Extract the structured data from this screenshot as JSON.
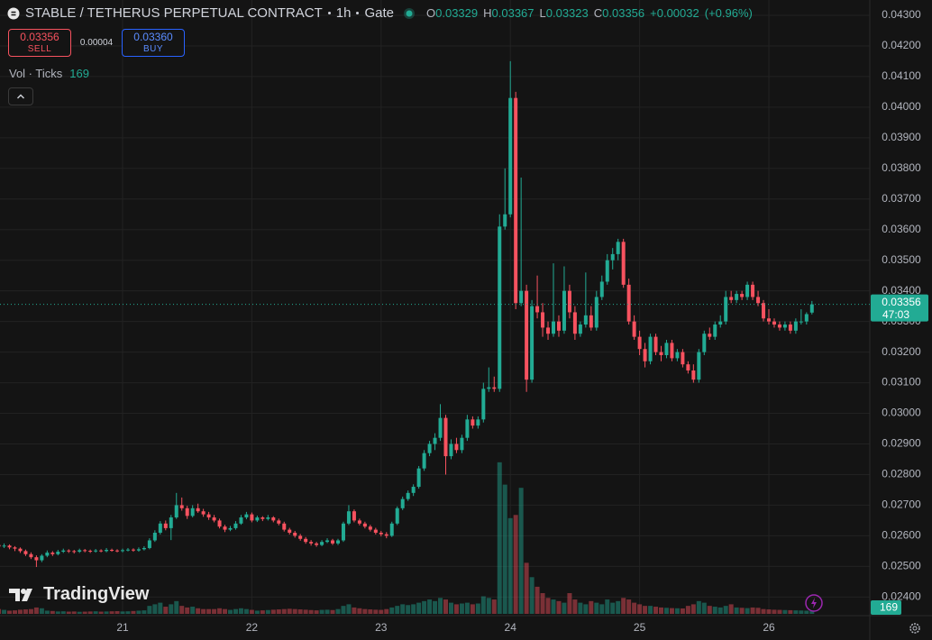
{
  "chart_data": {
    "type": "candlestick",
    "symbol": "STABLE / TETHERUS PERPETUAL CONTRACT",
    "interval": "1h",
    "exchange": "Gate",
    "ohlc_labels": [
      "O",
      "H",
      "L",
      "C"
    ],
    "change": {
      "value": 0.00032,
      "label": "+0.00032"
    },
    "change_percent": {
      "value": 0.96,
      "label": "(+0.96%)"
    },
    "trade": {
      "sell_price": 0.03356,
      "sell_label": "SELL",
      "spread": 4e-05,
      "buy_price": {
        "value": 0.0336,
        "label": "0.03360"
      },
      "buy_label": "BUY"
    },
    "volume_title": "Vol · Ticks",
    "countdown": "47:03",
    "logo": "TradingView",
    "up_color": "#22ab94",
    "down_color": "#f7525f",
    "grid": true,
    "ylim": [
      0.02345,
      0.0435
    ],
    "yticks": [
      {
        "value": 0.024,
        "label": "0.02400"
      },
      {
        "value": 0.025,
        "label": "0.02500"
      },
      {
        "value": 0.026,
        "label": "0.02600"
      },
      {
        "value": 0.027,
        "label": "0.02700"
      },
      {
        "value": 0.028,
        "label": "0.02800"
      },
      {
        "value": 0.029,
        "label": "0.02900"
      },
      {
        "value": 0.03,
        "label": "0.03000"
      },
      {
        "value": 0.031,
        "label": "0.03100"
      },
      {
        "value": 0.032,
        "label": "0.03200"
      },
      {
        "value": 0.033,
        "label": "0.03300"
      },
      {
        "value": 0.034,
        "label": "0.03400"
      },
      {
        "value": 0.035,
        "label": "0.03500"
      },
      {
        "value": 0.036,
        "label": "0.03600"
      },
      {
        "value": 0.037,
        "label": "0.03700"
      },
      {
        "value": 0.038,
        "label": "0.03800"
      },
      {
        "value": 0.039,
        "label": "0.03900"
      },
      {
        "value": 0.04,
        "label": "0.04000"
      },
      {
        "value": 0.041,
        "label": "0.04100"
      },
      {
        "value": 0.042,
        "label": "0.04200"
      },
      {
        "value": 0.043,
        "label": "0.04300"
      }
    ],
    "xticks": [
      {
        "value": 23,
        "label": "21"
      },
      {
        "value": 47,
        "label": "22"
      },
      {
        "value": 71,
        "label": "23"
      },
      {
        "value": 95,
        "label": "24"
      },
      {
        "value": 119,
        "label": "25"
      },
      {
        "value": 143,
        "label": "26"
      }
    ],
    "candles": [
      [
        0.0257,
        0.02578,
        0.0256,
        0.02565
      ],
      [
        0.02565,
        0.02575,
        0.0256,
        0.02568
      ],
      [
        0.02568,
        0.02572,
        0.02556,
        0.02562
      ],
      [
        0.02562,
        0.02566,
        0.0255,
        0.02558
      ],
      [
        0.02558,
        0.02562,
        0.02544,
        0.0255
      ],
      [
        0.0255,
        0.02555,
        0.02534,
        0.0254
      ],
      [
        0.0254,
        0.02546,
        0.02524,
        0.0253
      ],
      [
        0.0253,
        0.02536,
        0.02498,
        0.0252
      ],
      [
        0.0252,
        0.0254,
        0.02514,
        0.02535
      ],
      [
        0.02535,
        0.02552,
        0.0253,
        0.02545
      ],
      [
        0.02545,
        0.0255,
        0.02534,
        0.0254
      ],
      [
        0.0254,
        0.02554,
        0.02536,
        0.02548
      ],
      [
        0.02548,
        0.02558,
        0.02544,
        0.02552
      ],
      [
        0.02552,
        0.02556,
        0.02544,
        0.0255
      ],
      [
        0.0255,
        0.02554,
        0.02542,
        0.02548
      ],
      [
        0.02548,
        0.02558,
        0.02544,
        0.02553
      ],
      [
        0.02553,
        0.02557,
        0.02546,
        0.02551
      ],
      [
        0.02551,
        0.02555,
        0.02544,
        0.02549
      ],
      [
        0.02549,
        0.02557,
        0.02545,
        0.02552
      ],
      [
        0.02552,
        0.02556,
        0.02546,
        0.0255
      ],
      [
        0.0255,
        0.0256,
        0.02546,
        0.02554
      ],
      [
        0.02554,
        0.02558,
        0.02548,
        0.02552
      ],
      [
        0.02552,
        0.02556,
        0.02546,
        0.0255
      ],
      [
        0.0255,
        0.02558,
        0.02546,
        0.02553
      ],
      [
        0.02553,
        0.0256,
        0.02549,
        0.02555
      ],
      [
        0.02555,
        0.02559,
        0.02548,
        0.02552
      ],
      [
        0.02552,
        0.02562,
        0.02548,
        0.02556
      ],
      [
        0.02556,
        0.02566,
        0.02552,
        0.0256
      ],
      [
        0.0256,
        0.02592,
        0.02556,
        0.02585
      ],
      [
        0.02585,
        0.02618,
        0.0258,
        0.0261
      ],
      [
        0.0261,
        0.02648,
        0.02604,
        0.0264
      ],
      [
        0.0264,
        0.0265,
        0.02618,
        0.02625
      ],
      [
        0.02625,
        0.02668,
        0.02586,
        0.0266
      ],
      [
        0.0266,
        0.0274,
        0.02655,
        0.027
      ],
      [
        0.027,
        0.02725,
        0.02682,
        0.0269
      ],
      [
        0.0269,
        0.02698,
        0.02655,
        0.02665
      ],
      [
        0.02665,
        0.027,
        0.0266,
        0.0269
      ],
      [
        0.0269,
        0.02705,
        0.02675,
        0.0268
      ],
      [
        0.0268,
        0.02688,
        0.02662,
        0.0267
      ],
      [
        0.0267,
        0.02678,
        0.02652,
        0.0266
      ],
      [
        0.0266,
        0.02668,
        0.02644,
        0.0265
      ],
      [
        0.0265,
        0.02656,
        0.02624,
        0.0263
      ],
      [
        0.0263,
        0.02636,
        0.02612,
        0.0262
      ],
      [
        0.0262,
        0.02632,
        0.02615,
        0.02625
      ],
      [
        0.02625,
        0.02648,
        0.0262,
        0.0264
      ],
      [
        0.0264,
        0.02668,
        0.02636,
        0.0266
      ],
      [
        0.0266,
        0.02678,
        0.02654,
        0.0267
      ],
      [
        0.0267,
        0.02676,
        0.02644,
        0.0265
      ],
      [
        0.0265,
        0.02666,
        0.02645,
        0.0266
      ],
      [
        0.0266,
        0.02664,
        0.02648,
        0.02655
      ],
      [
        0.02655,
        0.02668,
        0.0265,
        0.0266
      ],
      [
        0.0266,
        0.02664,
        0.02644,
        0.0265
      ],
      [
        0.0265,
        0.02656,
        0.02634,
        0.0264
      ],
      [
        0.0264,
        0.02646,
        0.02614,
        0.0262
      ],
      [
        0.0262,
        0.02626,
        0.02604,
        0.0261
      ],
      [
        0.0261,
        0.02616,
        0.02594,
        0.026
      ],
      [
        0.026,
        0.02606,
        0.02584,
        0.0259
      ],
      [
        0.0259,
        0.02596,
        0.02574,
        0.0258
      ],
      [
        0.0258,
        0.02586,
        0.02568,
        0.02575
      ],
      [
        0.02575,
        0.0258,
        0.02564,
        0.0257
      ],
      [
        0.0257,
        0.02586,
        0.02566,
        0.0258
      ],
      [
        0.0258,
        0.02592,
        0.02576,
        0.02585
      ],
      [
        0.02585,
        0.0259,
        0.0257,
        0.02575
      ],
      [
        0.02575,
        0.0259,
        0.0257,
        0.02585
      ],
      [
        0.02585,
        0.02646,
        0.0258,
        0.0264
      ],
      [
        0.0264,
        0.027,
        0.02635,
        0.0268
      ],
      [
        0.0268,
        0.02686,
        0.02644,
        0.0265
      ],
      [
        0.0265,
        0.02656,
        0.02634,
        0.0264
      ],
      [
        0.0264,
        0.02646,
        0.02624,
        0.0263
      ],
      [
        0.0263,
        0.02636,
        0.02614,
        0.0262
      ],
      [
        0.0262,
        0.02626,
        0.02604,
        0.0261
      ],
      [
        0.0261,
        0.02616,
        0.02598,
        0.02605
      ],
      [
        0.02605,
        0.02612,
        0.02592,
        0.026
      ],
      [
        0.026,
        0.02646,
        0.02596,
        0.0264
      ],
      [
        0.0264,
        0.02696,
        0.02635,
        0.0269
      ],
      [
        0.0269,
        0.02728,
        0.02684,
        0.0272
      ],
      [
        0.0272,
        0.02748,
        0.02714,
        0.0274
      ],
      [
        0.0274,
        0.02768,
        0.0273,
        0.0276
      ],
      [
        0.0276,
        0.02828,
        0.02754,
        0.0282
      ],
      [
        0.0282,
        0.0288,
        0.02812,
        0.0287
      ],
      [
        0.0287,
        0.0291,
        0.0286,
        0.029
      ],
      [
        0.029,
        0.02935,
        0.0288,
        0.0292
      ],
      [
        0.0292,
        0.0303,
        0.0291,
        0.02985
      ],
      [
        0.02985,
        0.02995,
        0.028,
        0.0286
      ],
      [
        0.0286,
        0.02915,
        0.0285,
        0.029
      ],
      [
        0.029,
        0.0292,
        0.0287,
        0.0288
      ],
      [
        0.0288,
        0.0293,
        0.0287,
        0.0292
      ],
      [
        0.0292,
        0.02995,
        0.0291,
        0.0298
      ],
      [
        0.0298,
        0.0299,
        0.0295,
        0.0296
      ],
      [
        0.0296,
        0.0299,
        0.0295,
        0.0298
      ],
      [
        0.0298,
        0.031,
        0.0297,
        0.0308
      ],
      [
        0.0308,
        0.0315,
        0.0307,
        0.03085
      ],
      [
        0.03085,
        0.0312,
        0.0307,
        0.0308
      ],
      [
        0.0308,
        0.0365,
        0.0307,
        0.0361
      ],
      [
        0.0361,
        0.038,
        0.036,
        0.0365
      ],
      [
        0.0365,
        0.0415,
        0.0364,
        0.0403
      ],
      [
        0.0403,
        0.0405,
        0.0334,
        0.0336
      ],
      [
        0.0336,
        0.0377,
        0.0335,
        0.034
      ],
      [
        0.034,
        0.0342,
        0.0307,
        0.0311
      ],
      [
        0.0311,
        0.0337,
        0.031,
        0.0335
      ],
      [
        0.0335,
        0.0345,
        0.0331,
        0.0333
      ],
      [
        0.0333,
        0.0336,
        0.0325,
        0.0328
      ],
      [
        0.0328,
        0.033,
        0.0324,
        0.0326
      ],
      [
        0.0326,
        0.0349,
        0.0325,
        0.033
      ],
      [
        0.033,
        0.0332,
        0.0325,
        0.0327
      ],
      [
        0.0327,
        0.0348,
        0.0326,
        0.034
      ],
      [
        0.034,
        0.0342,
        0.0331,
        0.0333
      ],
      [
        0.0333,
        0.0335,
        0.0324,
        0.0326
      ],
      [
        0.0326,
        0.033,
        0.0325,
        0.0329
      ],
      [
        0.0329,
        0.0346,
        0.0328,
        0.0332
      ],
      [
        0.0332,
        0.0335,
        0.0327,
        0.0328
      ],
      [
        0.0328,
        0.034,
        0.0327,
        0.0338
      ],
      [
        0.0338,
        0.0345,
        0.0337,
        0.0343
      ],
      [
        0.0343,
        0.0352,
        0.0342,
        0.035
      ],
      [
        0.035,
        0.0354,
        0.0347,
        0.0352
      ],
      [
        0.0352,
        0.0357,
        0.035,
        0.0356
      ],
      [
        0.0356,
        0.0357,
        0.0341,
        0.0342
      ],
      [
        0.0342,
        0.0344,
        0.0329,
        0.033
      ],
      [
        0.033,
        0.0332,
        0.0324,
        0.0325
      ],
      [
        0.0325,
        0.0327,
        0.0319,
        0.0321
      ],
      [
        0.0321,
        0.0323,
        0.0315,
        0.0317
      ],
      [
        0.0317,
        0.0326,
        0.0316,
        0.0325
      ],
      [
        0.0325,
        0.0326,
        0.0319,
        0.032
      ],
      [
        0.032,
        0.0322,
        0.0317,
        0.0319
      ],
      [
        0.0319,
        0.0324,
        0.0318,
        0.0323
      ],
      [
        0.0323,
        0.0324,
        0.0317,
        0.0318
      ],
      [
        0.0318,
        0.0321,
        0.0317,
        0.032
      ],
      [
        0.032,
        0.0321,
        0.0315,
        0.0316
      ],
      [
        0.0316,
        0.0317,
        0.0313,
        0.0314
      ],
      [
        0.0314,
        0.0316,
        0.031,
        0.0311
      ],
      [
        0.0311,
        0.0321,
        0.031,
        0.032
      ],
      [
        0.032,
        0.0327,
        0.0319,
        0.0326
      ],
      [
        0.0326,
        0.0328,
        0.0324,
        0.0325
      ],
      [
        0.0325,
        0.033,
        0.0324,
        0.0329
      ],
      [
        0.0329,
        0.0332,
        0.0328,
        0.033
      ],
      [
        0.033,
        0.034,
        0.0329,
        0.0338
      ],
      [
        0.0338,
        0.034,
        0.0336,
        0.0337
      ],
      [
        0.0337,
        0.034,
        0.0336,
        0.0339
      ],
      [
        0.0339,
        0.034,
        0.0337,
        0.0338
      ],
      [
        0.0338,
        0.0343,
        0.0337,
        0.0342
      ],
      [
        0.0342,
        0.0343,
        0.0337,
        0.0338
      ],
      [
        0.0338,
        0.034,
        0.0335,
        0.0336
      ],
      [
        0.0336,
        0.0337,
        0.033,
        0.0331
      ],
      [
        0.0331,
        0.0334,
        0.0329,
        0.033
      ],
      [
        0.033,
        0.0331,
        0.0328,
        0.0329
      ],
      [
        0.0329,
        0.033,
        0.0327,
        0.0328
      ],
      [
        0.0328,
        0.033,
        0.0327,
        0.0329
      ],
      [
        0.0329,
        0.033,
        0.0326,
        0.0327
      ],
      [
        0.0327,
        0.0331,
        0.0326,
        0.033
      ],
      [
        0.033,
        0.0334,
        0.0329,
        0.033
      ],
      [
        0.033,
        0.0333,
        0.0329,
        0.03324
      ],
      [
        0.03329,
        0.03367,
        0.03323,
        0.03356
      ]
    ],
    "volumes": [
      300,
      250,
      200,
      220,
      260,
      280,
      300,
      400,
      350,
      200,
      180,
      150,
      160,
      140,
      150,
      130,
      140,
      150,
      160,
      140,
      150,
      160,
      170,
      150,
      160,
      180,
      200,
      220,
      500,
      600,
      700,
      450,
      600,
      800,
      500,
      400,
      450,
      350,
      300,
      300,
      300,
      350,
      300,
      250,
      300,
      350,
      300,
      250,
      200,
      220,
      240,
      260,
      280,
      300,
      320,
      300,
      280,
      260,
      240,
      220,
      250,
      260,
      240,
      300,
      500,
      600,
      400,
      350,
      300,
      280,
      260,
      250,
      300,
      400,
      500,
      600,
      550,
      600,
      700,
      800,
      900,
      800,
      1000,
      900,
      700,
      600,
      650,
      700,
      600,
      650,
      1100,
      1000,
      900,
      9500,
      8100,
      6000,
      6200,
      7900,
      3200,
      2300,
      1700,
      1300,
      1000,
      900,
      800,
      700,
      1300,
      900,
      700,
      600,
      800,
      700,
      600,
      900,
      700,
      800,
      1000,
      900,
      700,
      600,
      500,
      500,
      450,
      400,
      380,
      360,
      350,
      340,
      500,
      600,
      800,
      700,
      500,
      450,
      400,
      500,
      600,
      400,
      380,
      360,
      400,
      380,
      300,
      280,
      260,
      250,
      240,
      230,
      220,
      210,
      200,
      169
    ]
  }
}
